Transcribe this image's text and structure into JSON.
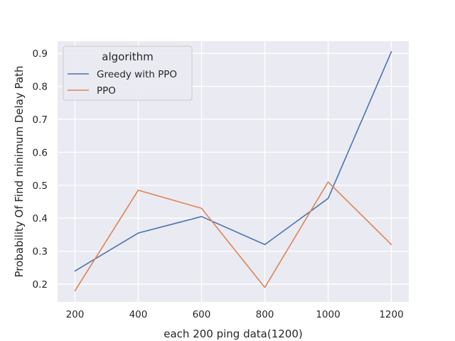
{
  "chart_data": {
    "type": "line",
    "title": "",
    "xlabel": "each 200 ping data(1200)",
    "ylabel": "Probability Of Find minimum Delay Path",
    "x": [
      200,
      400,
      600,
      800,
      1000,
      1200
    ],
    "xticks": [
      "200",
      "400",
      "600",
      "800",
      "1000",
      "1200"
    ],
    "yticks": [
      "0.2",
      "0.3",
      "0.4",
      "0.5",
      "0.6",
      "0.7",
      "0.8",
      "0.9"
    ],
    "xlim": [
      145,
      1255
    ],
    "ylim": [
      0.146,
      0.937
    ],
    "grid": true,
    "background_color": "#eaeaf2",
    "legend": {
      "title": "algorithm",
      "placement": "top-left"
    },
    "series": [
      {
        "name": "Greedy with PPO",
        "color": "#4c72b0",
        "values": [
          0.24,
          0.355,
          0.405,
          0.32,
          0.46,
          0.905
        ]
      },
      {
        "name": "PPO",
        "color": "#dd8452",
        "values": [
          0.18,
          0.485,
          0.43,
          0.19,
          0.51,
          0.32
        ]
      }
    ]
  }
}
